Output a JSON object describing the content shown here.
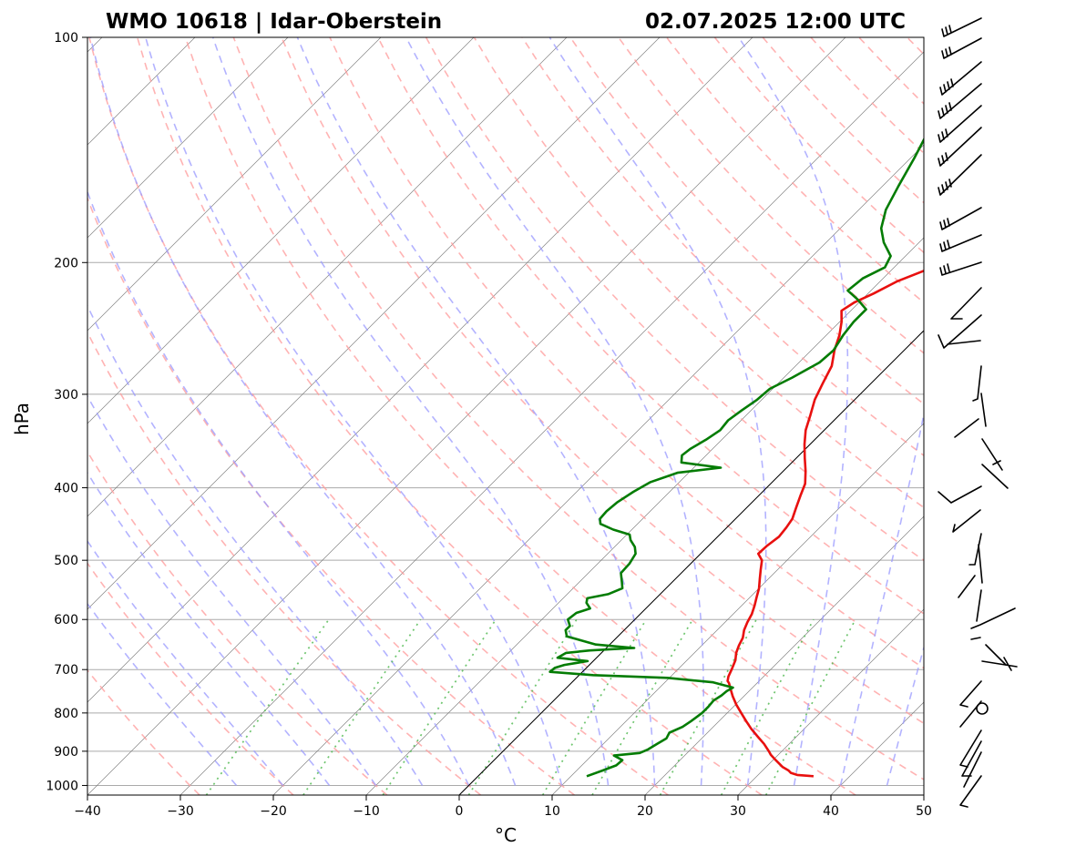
{
  "chart_data": {
    "type": "line",
    "diagram": "Skew-T log-P",
    "title_left": "WMO 10618 | Idar-Oberstein",
    "title_right": "02.07.2025 12:00 UTC",
    "xlabel": "°C",
    "ylabel": "hPa",
    "xlim": [
      -40,
      50
    ],
    "ylim": [
      1030,
      100
    ],
    "x_ticks": [
      -40,
      -30,
      -20,
      -10,
      0,
      10,
      20,
      30,
      40,
      50
    ],
    "x_tick_labels": [
      "−40",
      "−30",
      "−20",
      "−10",
      "0",
      "10",
      "20",
      "30",
      "40",
      "50"
    ],
    "y_ticks": [
      100,
      200,
      300,
      400,
      500,
      600,
      700,
      800,
      900,
      1000
    ],
    "y_tick_labels": [
      "100",
      "200",
      "300",
      "400",
      "500",
      "600",
      "700",
      "800",
      "900",
      "1000"
    ],
    "grid": true,
    "colors": {
      "temperature": "#e8100f",
      "dewpoint": "#047c04",
      "dry_adiabats": "#ff9a9a",
      "moist_adiabats": "#9a9aff",
      "mixing_ratio": "#55bb55",
      "isotherms": "#777777",
      "isobars": "#aaaaaa"
    },
    "series": [
      {
        "name": "Temperature",
        "points": [
          [
            972,
            36.1
          ],
          [
            968,
            34.2
          ],
          [
            962,
            33.3
          ],
          [
            955,
            32.8
          ],
          [
            945,
            31.8
          ],
          [
            925,
            30.3
          ],
          [
            910,
            29.2
          ],
          [
            900,
            28.6
          ],
          [
            880,
            27.3
          ],
          [
            860,
            25.8
          ],
          [
            840,
            24.3
          ],
          [
            820,
            22.9
          ],
          [
            800,
            21.5
          ],
          [
            780,
            20.1
          ],
          [
            760,
            18.8
          ],
          [
            745,
            17.9
          ],
          [
            730,
            17.0
          ],
          [
            725,
            16.6
          ],
          [
            715,
            16.2
          ],
          [
            700,
            15.8
          ],
          [
            680,
            15.2
          ],
          [
            665,
            14.5
          ],
          [
            650,
            14.0
          ],
          [
            635,
            13.6
          ],
          [
            620,
            12.9
          ],
          [
            605,
            12.4
          ],
          [
            590,
            12.0
          ],
          [
            575,
            11.4
          ],
          [
            560,
            10.7
          ],
          [
            545,
            10.0
          ],
          [
            530,
            9.1
          ],
          [
            515,
            8.2
          ],
          [
            500,
            7.3
          ],
          [
            490,
            6.2
          ],
          [
            478,
            6.3
          ],
          [
            465,
            6.6
          ],
          [
            452,
            6.4
          ],
          [
            440,
            6.1
          ],
          [
            425,
            5.3
          ],
          [
            410,
            4.5
          ],
          [
            395,
            3.7
          ],
          [
            380,
            2.4
          ],
          [
            365,
            0.9
          ],
          [
            350,
            -0.6
          ],
          [
            335,
            -2.0
          ],
          [
            320,
            -3.1
          ],
          [
            305,
            -4.3
          ],
          [
            290,
            -5.2
          ],
          [
            275,
            -6.1
          ],
          [
            262,
            -7.5
          ],
          [
            250,
            -8.6
          ],
          [
            240,
            -9.8
          ],
          [
            232,
            -11.0
          ],
          [
            226,
            -10.5
          ],
          [
            220,
            -9.4
          ],
          [
            212,
            -8.2
          ],
          [
            205,
            -6.4
          ],
          [
            198,
            -5.3
          ],
          [
            193,
            -5.8
          ],
          [
            185,
            -6.8
          ],
          [
            175,
            -7.6
          ],
          [
            165,
            -8.4
          ],
          [
            155,
            -8.8
          ],
          [
            148,
            -9.5
          ],
          [
            142,
            -9.8
          ],
          [
            138,
            -9.3
          ],
          [
            132,
            -10.2
          ],
          [
            128,
            -10.6
          ],
          [
            122,
            -11.8
          ],
          [
            116,
            -12.5
          ],
          [
            110,
            -13.8
          ],
          [
            104,
            -14.6
          ],
          [
            100,
            -15.4
          ]
        ]
      },
      {
        "name": "Dew Point",
        "points": [
          [
            972,
            11.7
          ],
          [
            955,
            12.8
          ],
          [
            940,
            13.7
          ],
          [
            925,
            13.8
          ],
          [
            912,
            12.4
          ],
          [
            905,
            14.9
          ],
          [
            895,
            15.4
          ],
          [
            880,
            15.8
          ],
          [
            865,
            16.2
          ],
          [
            850,
            15.9
          ],
          [
            835,
            16.7
          ],
          [
            820,
            17.0
          ],
          [
            800,
            17.3
          ],
          [
            785,
            17.3
          ],
          [
            770,
            17.2
          ],
          [
            758,
            17.5
          ],
          [
            748,
            17.6
          ],
          [
            740,
            17.9
          ],
          [
            728,
            15.2
          ],
          [
            718,
            9.8
          ],
          [
            712,
            1.5
          ],
          [
            705,
            -3.5
          ],
          [
            696,
            -3.4
          ],
          [
            690,
            -2.7
          ],
          [
            682,
            -0.6
          ],
          [
            675,
            -4.2
          ],
          [
            665,
            -3.8
          ],
          [
            660,
            -1.5
          ],
          [
            655,
            3.0
          ],
          [
            648,
            -1.5
          ],
          [
            640,
            -3.5
          ],
          [
            632,
            -5.5
          ],
          [
            620,
            -6.3
          ],
          [
            612,
            -6.3
          ],
          [
            600,
            -7.2
          ],
          [
            588,
            -7.0
          ],
          [
            580,
            -6.0
          ],
          [
            570,
            -7.0
          ],
          [
            562,
            -7.4
          ],
          [
            555,
            -5.6
          ],
          [
            545,
            -4.7
          ],
          [
            535,
            -5.4
          ],
          [
            520,
            -6.5
          ],
          [
            505,
            -6.6
          ],
          [
            490,
            -7.0
          ],
          [
            480,
            -7.8
          ],
          [
            470,
            -9.0
          ],
          [
            462,
            -9.7
          ],
          [
            455,
            -12.0
          ],
          [
            447,
            -14.0
          ],
          [
            440,
            -14.6
          ],
          [
            430,
            -14.7
          ],
          [
            418,
            -14.5
          ],
          [
            405,
            -13.9
          ],
          [
            393,
            -13.1
          ],
          [
            382,
            -11.2
          ],
          [
            376,
            -7.1
          ],
          [
            370,
            -11.9
          ],
          [
            362,
            -12.6
          ],
          [
            355,
            -12.4
          ],
          [
            345,
            -11.7
          ],
          [
            335,
            -11.2
          ],
          [
            325,
            -11.4
          ],
          [
            315,
            -11.0
          ],
          [
            305,
            -10.5
          ],
          [
            295,
            -10.3
          ],
          [
            285,
            -9.1
          ],
          [
            272,
            -7.8
          ],
          [
            262,
            -7.6
          ],
          [
            250,
            -8.2
          ],
          [
            240,
            -8.5
          ],
          [
            231,
            -8.5
          ],
          [
            224,
            -10.5
          ],
          [
            218,
            -12.5
          ],
          [
            210,
            -12.2
          ],
          [
            203,
            -11.0
          ],
          [
            196,
            -11.6
          ],
          [
            188,
            -13.8
          ],
          [
            180,
            -15.6
          ],
          [
            170,
            -17.1
          ],
          [
            158,
            -18.3
          ],
          [
            145,
            -19.6
          ],
          [
            135,
            -20.8
          ],
          [
            125,
            -22.5
          ],
          [
            115,
            -24.2
          ],
          [
            106,
            -25.8
          ],
          [
            100,
            -26.8
          ]
        ]
      }
    ],
    "reference_lines": [
      {
        "name": "0°C isotherm",
        "value": 0
      }
    ]
  }
}
